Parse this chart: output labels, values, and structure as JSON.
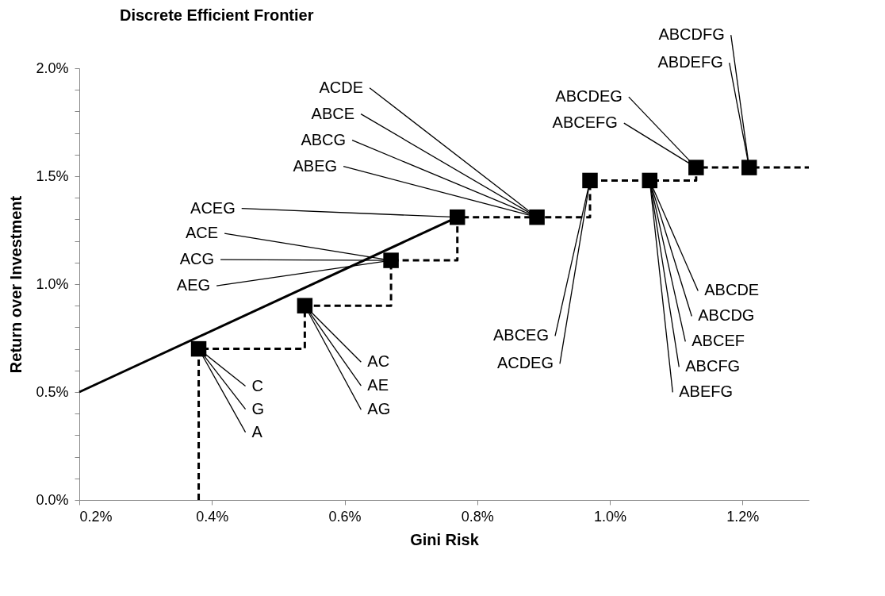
{
  "chart_data": {
    "type": "scatter",
    "title": "Discrete Efficient Frontier",
    "xlabel": "Gini Risk",
    "ylabel": "Return over Investment",
    "xlim": [
      0.2,
      1.3
    ],
    "ylim": [
      0,
      2.0
    ],
    "xticks": [
      {
        "value": 0.2,
        "label": "0.2%"
      },
      {
        "value": 0.4,
        "label": "0.4%"
      },
      {
        "value": 0.6,
        "label": "0.6%"
      },
      {
        "value": 0.8,
        "label": "0.8%"
      },
      {
        "value": 1.0,
        "label": "1.0%"
      },
      {
        "value": 1.2,
        "label": "1.2%"
      }
    ],
    "yticks": [
      {
        "value": 0,
        "label": "0.0%"
      },
      {
        "value": 0.1,
        "label": null
      },
      {
        "value": 0.2,
        "label": null
      },
      {
        "value": 0.3,
        "label": null
      },
      {
        "value": 0.4,
        "label": null
      },
      {
        "value": 0.5,
        "label": "0.5%"
      },
      {
        "value": 0.6,
        "label": null
      },
      {
        "value": 0.7,
        "label": null
      },
      {
        "value": 0.8,
        "label": null
      },
      {
        "value": 0.9,
        "label": null
      },
      {
        "value": 1.0,
        "label": "1.0%"
      },
      {
        "value": 1.1,
        "label": null
      },
      {
        "value": 1.2,
        "label": null
      },
      {
        "value": 1.3,
        "label": null
      },
      {
        "value": 1.4,
        "label": null
      },
      {
        "value": 1.5,
        "label": "1.5%"
      },
      {
        "value": 1.6,
        "label": null
      },
      {
        "value": 1.7,
        "label": null
      },
      {
        "value": 1.8,
        "label": null
      },
      {
        "value": 1.9,
        "label": null
      },
      {
        "value": 2.0,
        "label": "2.0%"
      }
    ],
    "grid": false,
    "series": [
      {
        "type": "line",
        "color": "#000000",
        "line_style": "solid",
        "x": [
          0.2,
          0.77
        ],
        "values": [
          0.5,
          1.31
        ]
      },
      {
        "type": "step",
        "color": "#000000",
        "line_style": "dashed",
        "x": [
          0.38,
          0.38,
          0.54,
          0.67,
          0.77,
          0.89,
          0.97,
          1.06,
          1.13,
          1.21,
          1.3
        ],
        "values": [
          0,
          0.7,
          0.9,
          1.11,
          1.31,
          1.31,
          1.48,
          1.48,
          1.54,
          1.54,
          1.54
        ]
      },
      {
        "color": "#000000",
        "marker": "square",
        "x": [
          0.38,
          0.54,
          0.67,
          0.77,
          0.89,
          0.97,
          1.06,
          1.13,
          1.21
        ],
        "values": [
          0.7,
          0.9,
          1.11,
          1.31,
          1.31,
          1.48,
          1.48,
          1.54,
          1.54
        ]
      }
    ],
    "annotations": [
      {
        "text": "C",
        "x": 0.38,
        "y": 0.7
      },
      {
        "text": "G",
        "x": 0.38,
        "y": 0.7
      },
      {
        "text": "A",
        "x": 0.38,
        "y": 0.7
      },
      {
        "text": "AC",
        "x": 0.54,
        "y": 0.9
      },
      {
        "text": "AE",
        "x": 0.54,
        "y": 0.9
      },
      {
        "text": "AG",
        "x": 0.54,
        "y": 0.9
      },
      {
        "text": "ACE",
        "x": 0.67,
        "y": 1.11
      },
      {
        "text": "ACG",
        "x": 0.67,
        "y": 1.11
      },
      {
        "text": "AEG",
        "x": 0.67,
        "y": 1.11
      },
      {
        "text": "ACEG",
        "x": 0.77,
        "y": 1.31
      },
      {
        "text": "ACDE",
        "x": 0.89,
        "y": 1.31
      },
      {
        "text": "ABCE",
        "x": 0.89,
        "y": 1.31
      },
      {
        "text": "ABCG",
        "x": 0.89,
        "y": 1.31
      },
      {
        "text": "ABEG",
        "x": 0.89,
        "y": 1.31
      },
      {
        "text": "ABCEG",
        "x": 0.97,
        "y": 1.48
      },
      {
        "text": "ACDEG",
        "x": 0.97,
        "y": 1.48
      },
      {
        "text": "ABCDE",
        "x": 1.06,
        "y": 1.48
      },
      {
        "text": "ABCDG",
        "x": 1.06,
        "y": 1.48
      },
      {
        "text": "ABCEF",
        "x": 1.06,
        "y": 1.48
      },
      {
        "text": "ABCFG",
        "x": 1.06,
        "y": 1.48
      },
      {
        "text": "ABEFG",
        "x": 1.06,
        "y": 1.48
      },
      {
        "text": "ABCDEG",
        "x": 1.13,
        "y": 1.54
      },
      {
        "text": "ABCEFG",
        "x": 1.13,
        "y": 1.54
      },
      {
        "text": "ABCDFG",
        "x": 1.21,
        "y": 1.54
      },
      {
        "text": "ABDEFG",
        "x": 1.21,
        "y": 1.54
      }
    ]
  }
}
